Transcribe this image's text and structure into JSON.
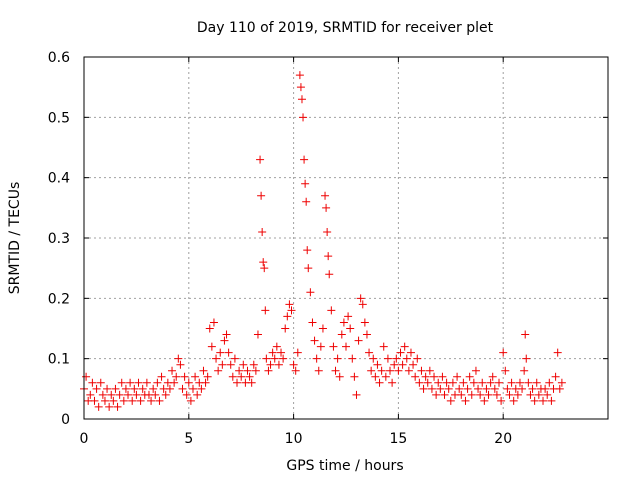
{
  "chart_data": {
    "type": "scatter",
    "title": "Day 110 of 2019, SRMTID for receiver plet",
    "xlabel": "GPS time / hours",
    "ylabel": "SRMTID / TECUs",
    "xlim": [
      0,
      25
    ],
    "ylim": [
      0,
      0.6
    ],
    "x_ticks": [
      0,
      5,
      10,
      15,
      20
    ],
    "x_tick_labels": [
      "0",
      "5",
      "10",
      "15",
      "20"
    ],
    "y_ticks": [
      0,
      0.1,
      0.2,
      0.3,
      0.4,
      0.5,
      0.6
    ],
    "y_tick_labels": [
      "0",
      "0.1",
      "0.2",
      "0.3",
      "0.4",
      "0.5",
      "0.6"
    ],
    "grid": true,
    "marker": "plus",
    "color": "#ee0000",
    "series": [
      {
        "name": "SRMTID",
        "points": [
          [
            0.0,
            0.05
          ],
          [
            0.1,
            0.07
          ],
          [
            0.2,
            0.03
          ],
          [
            0.3,
            0.04
          ],
          [
            0.4,
            0.06
          ],
          [
            0.5,
            0.03
          ],
          [
            0.6,
            0.05
          ],
          [
            0.7,
            0.02
          ],
          [
            0.8,
            0.06
          ],
          [
            0.9,
            0.04
          ],
          [
            1.0,
            0.03
          ],
          [
            1.1,
            0.05
          ],
          [
            1.2,
            0.02
          ],
          [
            1.3,
            0.04
          ],
          [
            1.4,
            0.03
          ],
          [
            1.5,
            0.05
          ],
          [
            1.6,
            0.02
          ],
          [
            1.7,
            0.04
          ],
          [
            1.8,
            0.06
          ],
          [
            1.9,
            0.03
          ],
          [
            2.0,
            0.05
          ],
          [
            2.1,
            0.04
          ],
          [
            2.2,
            0.06
          ],
          [
            2.3,
            0.03
          ],
          [
            2.4,
            0.05
          ],
          [
            2.5,
            0.04
          ],
          [
            2.6,
            0.06
          ],
          [
            2.7,
            0.03
          ],
          [
            2.8,
            0.05
          ],
          [
            2.9,
            0.04
          ],
          [
            3.0,
            0.06
          ],
          [
            3.1,
            0.04
          ],
          [
            3.2,
            0.03
          ],
          [
            3.3,
            0.05
          ],
          [
            3.4,
            0.04
          ],
          [
            3.5,
            0.06
          ],
          [
            3.6,
            0.03
          ],
          [
            3.7,
            0.07
          ],
          [
            3.8,
            0.05
          ],
          [
            3.9,
            0.04
          ],
          [
            4.0,
            0.06
          ],
          [
            4.1,
            0.05
          ],
          [
            4.2,
            0.08
          ],
          [
            4.3,
            0.06
          ],
          [
            4.4,
            0.07
          ],
          [
            4.5,
            0.1
          ],
          [
            4.6,
            0.09
          ],
          [
            4.7,
            0.05
          ],
          [
            4.8,
            0.07
          ],
          [
            4.9,
            0.04
          ],
          [
            5.0,
            0.06
          ],
          [
            5.1,
            0.03
          ],
          [
            5.2,
            0.05
          ],
          [
            5.3,
            0.07
          ],
          [
            5.4,
            0.04
          ],
          [
            5.5,
            0.06
          ],
          [
            5.6,
            0.05
          ],
          [
            5.7,
            0.08
          ],
          [
            5.8,
            0.06
          ],
          [
            5.9,
            0.07
          ],
          [
            6.0,
            0.15
          ],
          [
            6.1,
            0.12
          ],
          [
            6.2,
            0.16
          ],
          [
            6.3,
            0.1
          ],
          [
            6.4,
            0.08
          ],
          [
            6.5,
            0.11
          ],
          [
            6.6,
            0.09
          ],
          [
            6.7,
            0.13
          ],
          [
            6.8,
            0.14
          ],
          [
            6.9,
            0.11
          ],
          [
            7.0,
            0.09
          ],
          [
            7.1,
            0.07
          ],
          [
            7.2,
            0.1
          ],
          [
            7.3,
            0.06
          ],
          [
            7.4,
            0.08
          ],
          [
            7.5,
            0.07
          ],
          [
            7.6,
            0.09
          ],
          [
            7.7,
            0.06
          ],
          [
            7.8,
            0.08
          ],
          [
            7.9,
            0.07
          ],
          [
            8.0,
            0.06
          ],
          [
            8.1,
            0.09
          ],
          [
            8.2,
            0.08
          ],
          [
            8.3,
            0.14
          ],
          [
            8.4,
            0.43
          ],
          [
            8.45,
            0.37
          ],
          [
            8.5,
            0.31
          ],
          [
            8.55,
            0.26
          ],
          [
            8.6,
            0.25
          ],
          [
            8.65,
            0.18
          ],
          [
            8.7,
            0.1
          ],
          [
            8.8,
            0.08
          ],
          [
            8.9,
            0.09
          ],
          [
            9.0,
            0.11
          ],
          [
            9.1,
            0.1
          ],
          [
            9.2,
            0.12
          ],
          [
            9.3,
            0.09
          ],
          [
            9.4,
            0.11
          ],
          [
            9.5,
            0.1
          ],
          [
            9.6,
            0.15
          ],
          [
            9.7,
            0.17
          ],
          [
            9.8,
            0.19
          ],
          [
            9.9,
            0.18
          ],
          [
            10.0,
            0.09
          ],
          [
            10.1,
            0.08
          ],
          [
            10.2,
            0.11
          ],
          [
            10.3,
            0.57
          ],
          [
            10.35,
            0.55
          ],
          [
            10.4,
            0.53
          ],
          [
            10.45,
            0.5
          ],
          [
            10.5,
            0.43
          ],
          [
            10.55,
            0.39
          ],
          [
            10.6,
            0.36
          ],
          [
            10.65,
            0.28
          ],
          [
            10.7,
            0.25
          ],
          [
            10.8,
            0.21
          ],
          [
            10.9,
            0.16
          ],
          [
            11.0,
            0.13
          ],
          [
            11.1,
            0.1
          ],
          [
            11.2,
            0.08
          ],
          [
            11.3,
            0.12
          ],
          [
            11.4,
            0.15
          ],
          [
            11.5,
            0.37
          ],
          [
            11.55,
            0.35
          ],
          [
            11.6,
            0.31
          ],
          [
            11.65,
            0.27
          ],
          [
            11.7,
            0.24
          ],
          [
            11.8,
            0.18
          ],
          [
            11.9,
            0.12
          ],
          [
            12.0,
            0.08
          ],
          [
            12.1,
            0.1
          ],
          [
            12.2,
            0.07
          ],
          [
            12.3,
            0.14
          ],
          [
            12.4,
            0.16
          ],
          [
            12.5,
            0.12
          ],
          [
            12.6,
            0.17
          ],
          [
            12.7,
            0.15
          ],
          [
            12.8,
            0.1
          ],
          [
            12.9,
            0.07
          ],
          [
            13.0,
            0.04
          ],
          [
            13.1,
            0.13
          ],
          [
            13.2,
            0.2
          ],
          [
            13.3,
            0.19
          ],
          [
            13.4,
            0.16
          ],
          [
            13.5,
            0.14
          ],
          [
            13.6,
            0.11
          ],
          [
            13.7,
            0.08
          ],
          [
            13.8,
            0.1
          ],
          [
            13.9,
            0.07
          ],
          [
            14.0,
            0.09
          ],
          [
            14.1,
            0.06
          ],
          [
            14.2,
            0.08
          ],
          [
            14.3,
            0.12
          ],
          [
            14.4,
            0.07
          ],
          [
            14.5,
            0.1
          ],
          [
            14.6,
            0.08
          ],
          [
            14.7,
            0.06
          ],
          [
            14.8,
            0.09
          ],
          [
            14.9,
            0.1
          ],
          [
            15.0,
            0.08
          ],
          [
            15.1,
            0.11
          ],
          [
            15.2,
            0.09
          ],
          [
            15.3,
            0.12
          ],
          [
            15.4,
            0.1
          ],
          [
            15.5,
            0.08
          ],
          [
            15.6,
            0.11
          ],
          [
            15.7,
            0.09
          ],
          [
            15.8,
            0.07
          ],
          [
            15.9,
            0.1
          ],
          [
            16.0,
            0.06
          ],
          [
            16.1,
            0.08
          ],
          [
            16.2,
            0.05
          ],
          [
            16.3,
            0.07
          ],
          [
            16.4,
            0.06
          ],
          [
            16.5,
            0.08
          ],
          [
            16.6,
            0.05
          ],
          [
            16.7,
            0.07
          ],
          [
            16.8,
            0.04
          ],
          [
            16.9,
            0.06
          ],
          [
            17.0,
            0.05
          ],
          [
            17.1,
            0.07
          ],
          [
            17.2,
            0.04
          ],
          [
            17.3,
            0.06
          ],
          [
            17.4,
            0.05
          ],
          [
            17.5,
            0.03
          ],
          [
            17.6,
            0.06
          ],
          [
            17.7,
            0.04
          ],
          [
            17.8,
            0.07
          ],
          [
            17.9,
            0.05
          ],
          [
            18.0,
            0.04
          ],
          [
            18.1,
            0.06
          ],
          [
            18.2,
            0.03
          ],
          [
            18.3,
            0.05
          ],
          [
            18.4,
            0.07
          ],
          [
            18.5,
            0.04
          ],
          [
            18.6,
            0.06
          ],
          [
            18.7,
            0.08
          ],
          [
            18.8,
            0.05
          ],
          [
            18.9,
            0.04
          ],
          [
            19.0,
            0.06
          ],
          [
            19.1,
            0.03
          ],
          [
            19.2,
            0.05
          ],
          [
            19.3,
            0.04
          ],
          [
            19.4,
            0.06
          ],
          [
            19.5,
            0.07
          ],
          [
            19.6,
            0.05
          ],
          [
            19.7,
            0.04
          ],
          [
            19.8,
            0.06
          ],
          [
            19.9,
            0.03
          ],
          [
            20.0,
            0.11
          ],
          [
            20.1,
            0.08
          ],
          [
            20.2,
            0.05
          ],
          [
            20.3,
            0.04
          ],
          [
            20.4,
            0.06
          ],
          [
            20.5,
            0.03
          ],
          [
            20.6,
            0.05
          ],
          [
            20.7,
            0.04
          ],
          [
            20.8,
            0.06
          ],
          [
            20.9,
            0.05
          ],
          [
            21.0,
            0.08
          ],
          [
            21.05,
            0.14
          ],
          [
            21.1,
            0.1
          ],
          [
            21.2,
            0.06
          ],
          [
            21.3,
            0.04
          ],
          [
            21.4,
            0.05
          ],
          [
            21.5,
            0.03
          ],
          [
            21.6,
            0.06
          ],
          [
            21.7,
            0.04
          ],
          [
            21.8,
            0.05
          ],
          [
            21.9,
            0.03
          ],
          [
            22.0,
            0.05
          ],
          [
            22.1,
            0.04
          ],
          [
            22.2,
            0.06
          ],
          [
            22.3,
            0.03
          ],
          [
            22.4,
            0.05
          ],
          [
            22.5,
            0.07
          ],
          [
            22.6,
            0.11
          ],
          [
            22.7,
            0.05
          ],
          [
            22.8,
            0.06
          ]
        ]
      }
    ]
  }
}
